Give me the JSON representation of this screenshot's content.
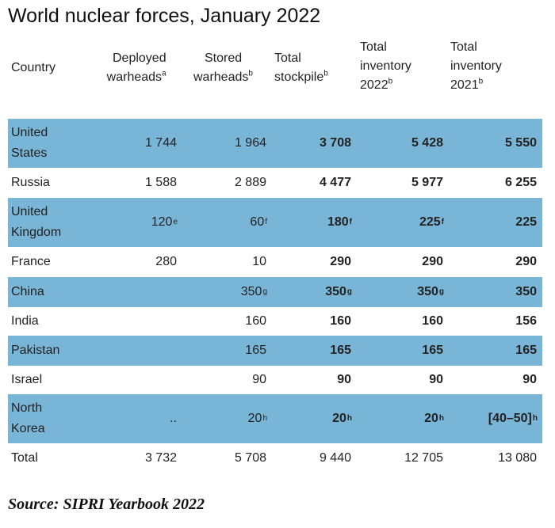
{
  "title": "World nuclear forces, January 2022",
  "columns": [
    {
      "lines": [
        "Country"
      ],
      "sup": ""
    },
    {
      "lines": [
        "Deployed",
        "warheads"
      ],
      "sup": "a"
    },
    {
      "lines": [
        "Stored",
        "warheads"
      ],
      "sup": "b"
    },
    {
      "lines": [
        "Total",
        "stockpile"
      ],
      "sup": "b"
    },
    {
      "lines": [
        "Total",
        "inventory",
        "2022"
      ],
      "sup": "b"
    },
    {
      "lines": [
        "Total",
        "inventory",
        "2021"
      ],
      "sup": "b"
    }
  ],
  "rows": [
    {
      "country": "United States",
      "deployed": "1 744",
      "deployed_sup": "",
      "stored": "1 964",
      "stored_sup": "",
      "stockpile": "3 708",
      "stockpile_sup": "",
      "inv2022": "5 428",
      "inv2022_sup": "",
      "inv2021": "5 550",
      "inv2021_sup": "",
      "shaded": true
    },
    {
      "country": "Russia",
      "deployed": "1 588",
      "deployed_sup": "",
      "stored": "2 889",
      "stored_sup": "",
      "stockpile": "4 477",
      "stockpile_sup": "",
      "inv2022": "5 977",
      "inv2022_sup": "",
      "inv2021": "6 255",
      "inv2021_sup": "",
      "shaded": false
    },
    {
      "country": "United Kingdom",
      "deployed": "120",
      "deployed_sup": "e",
      "stored": "60",
      "stored_sup": "f",
      "stockpile": "180",
      "stockpile_sup": "f",
      "inv2022": "225",
      "inv2022_sup": "f",
      "inv2021": "225",
      "inv2021_sup": "",
      "shaded": true
    },
    {
      "country": "France",
      "deployed": "280",
      "deployed_sup": "",
      "stored": "10",
      "stored_sup": "",
      "stockpile": "290",
      "stockpile_sup": "",
      "inv2022": "290",
      "inv2022_sup": "",
      "inv2021": "290",
      "inv2021_sup": "",
      "shaded": false
    },
    {
      "country": "China",
      "deployed": "",
      "deployed_sup": "",
      "stored": "350",
      "stored_sup": "g",
      "stockpile": "350",
      "stockpile_sup": "g",
      "inv2022": "350",
      "inv2022_sup": "g",
      "inv2021": "350",
      "inv2021_sup": "",
      "shaded": true
    },
    {
      "country": "India",
      "deployed": "",
      "deployed_sup": "",
      "stored": "160",
      "stored_sup": "",
      "stockpile": "160",
      "stockpile_sup": "",
      "inv2022": "160",
      "inv2022_sup": "",
      "inv2021": "156",
      "inv2021_sup": "",
      "shaded": false
    },
    {
      "country": "Pakistan",
      "deployed": "",
      "deployed_sup": "",
      "stored": "165",
      "stored_sup": "",
      "stockpile": "165",
      "stockpile_sup": "",
      "inv2022": "165",
      "inv2022_sup": "",
      "inv2021": "165",
      "inv2021_sup": "",
      "shaded": true
    },
    {
      "country": "Israel",
      "deployed": "",
      "deployed_sup": "",
      "stored": "90",
      "stored_sup": "",
      "stockpile": "90",
      "stockpile_sup": "",
      "inv2022": "90",
      "inv2022_sup": "",
      "inv2021": "90",
      "inv2021_sup": "",
      "shaded": false
    },
    {
      "country": "North Korea",
      "deployed": "..",
      "deployed_sup": "",
      "stored": "20",
      "stored_sup": "h",
      "stockpile": "20",
      "stockpile_sup": "h",
      "inv2022": "20",
      "inv2022_sup": "h",
      "inv2021": "[40–50]",
      "inv2021_sup": "h",
      "shaded": true
    },
    {
      "country": "Total",
      "deployed": "3 732",
      "deployed_sup": "",
      "stored": "5 708",
      "stored_sup": "",
      "stockpile": "9 440",
      "stockpile_sup": "",
      "inv2022": "12 705",
      "inv2022_sup": "",
      "inv2021": "13 080",
      "inv2021_sup": "",
      "shaded": false
    }
  ],
  "source": "Source: SIPRI Yearbook 2022",
  "colors": {
    "row_shade": "#79b5d6"
  }
}
